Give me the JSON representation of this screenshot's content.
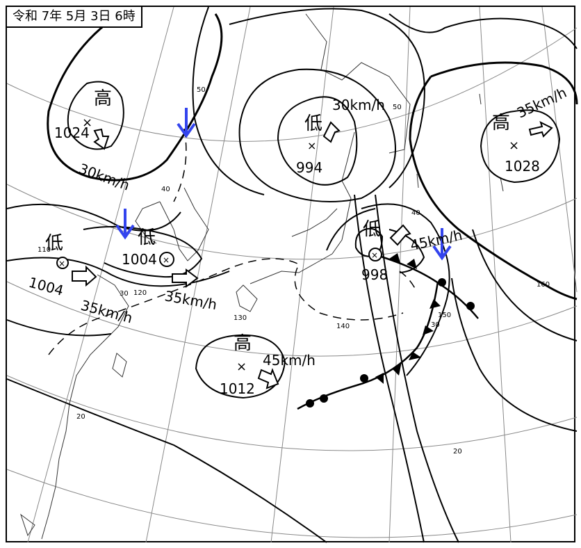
{
  "title": "令和 7年 5月 3日 6時",
  "pressure_systems": [
    {
      "id": "high-nw",
      "kind": "高",
      "pressure": "1024",
      "speed": "30km/h"
    },
    {
      "id": "low-west",
      "kind": "低",
      "pressure": "1004",
      "speed": "35km/h"
    },
    {
      "id": "low-mid",
      "kind": "低",
      "pressure": "1004",
      "speed": "35km/h"
    },
    {
      "id": "low-north",
      "kind": "低",
      "pressure": "994",
      "speed": "30km/h"
    },
    {
      "id": "low-east",
      "kind": "低",
      "pressure": "998",
      "speed": "45km/h"
    },
    {
      "id": "high-ne",
      "kind": "高",
      "pressure": "1028",
      "speed": "35km/h"
    },
    {
      "id": "high-south",
      "kind": "高",
      "pressure": "1012",
      "speed": "45km/h"
    }
  ],
  "grid_labels": {
    "lat50": "50",
    "lat40": "40",
    "lat30": "30",
    "lat20": "20",
    "lat50b": "50",
    "lat40b": "40",
    "lat30b": "30",
    "lat20b": "20",
    "lon110": "110",
    "lon120": "120",
    "lon130": "130",
    "lon140": "140",
    "lon150": "150",
    "lon160": "160"
  },
  "colors": {
    "highlight_arrow": "#3344ee",
    "line": "#000000",
    "grid": "#888888"
  }
}
